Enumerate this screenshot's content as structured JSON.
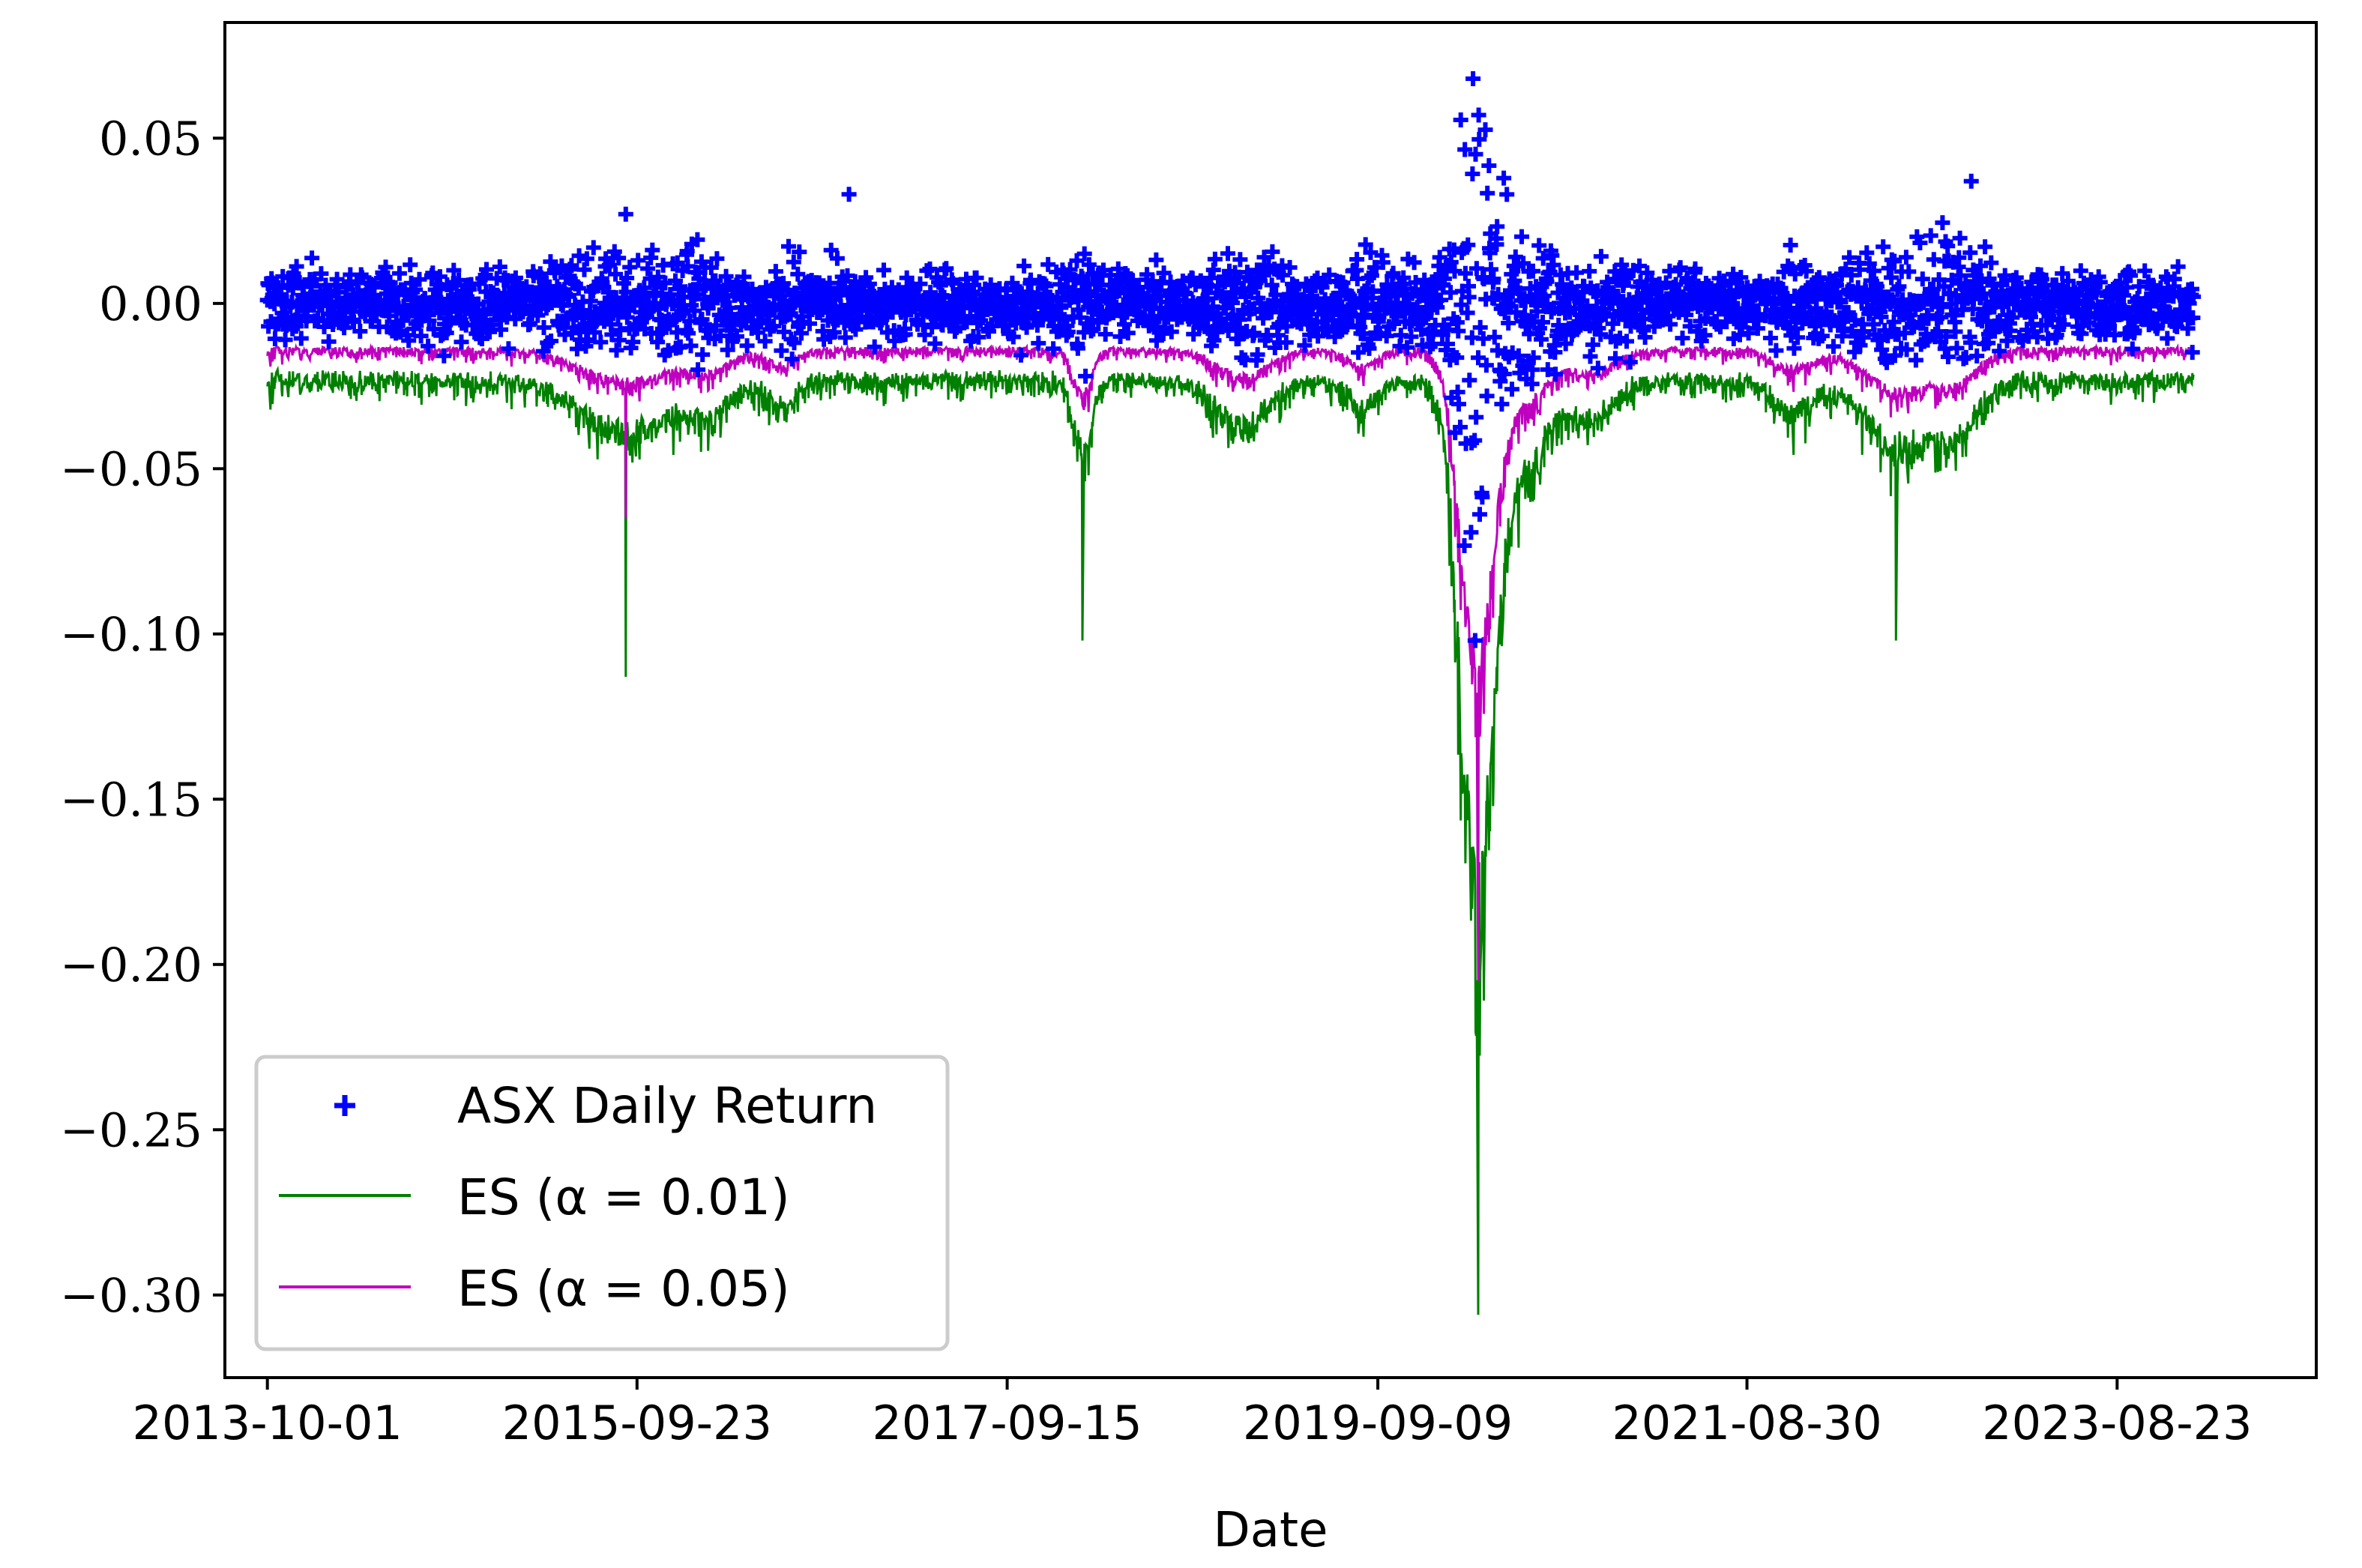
{
  "chart_data": {
    "type": "line",
    "title": "",
    "xlabel": "Date",
    "ylabel": "",
    "x_ticks": [
      "2013-10-01",
      "2015-09-23",
      "2017-09-15",
      "2019-09-09",
      "2021-08-30",
      "2023-08-23"
    ],
    "y_ticks": [
      "0.05",
      "0.00",
      "−0.05",
      "−0.10",
      "−0.15",
      "−0.20",
      "−0.25",
      "−0.30"
    ],
    "y_tick_values": [
      0.05,
      0.0,
      -0.05,
      -0.1,
      -0.15,
      -0.2,
      -0.25,
      -0.3
    ],
    "xlim": [
      "2013-07-10",
      "2024-09-15"
    ],
    "ylim": [
      -0.325,
      0.085
    ],
    "grid": false,
    "legend_position": "lower-left",
    "series": [
      {
        "name": "ASX Daily Return",
        "kind": "scatter",
        "marker": "+",
        "color": "#0000ff",
        "notable_points": [
          {
            "x": "2020-03-13",
            "y": 0.068
          },
          {
            "x": "2020-03-24",
            "y": 0.057
          },
          {
            "x": "2020-03-17",
            "y": -0.102
          },
          {
            "x": "2016-11-10",
            "y": 0.033
          },
          {
            "x": "2022-11-11",
            "y": 0.037
          },
          {
            "x": "2015-09-01",
            "y": 0.027
          }
        ]
      },
      {
        "name": "ES (α = 0.01)",
        "kind": "line",
        "color": "#008000",
        "notable_points": [
          {
            "x": "2020-03-23",
            "y": -0.306
          },
          {
            "x": "2015-09-01",
            "y": -0.113
          },
          {
            "x": "2018-02-09",
            "y": -0.102
          },
          {
            "x": "2022-06-17",
            "y": -0.102
          }
        ]
      },
      {
        "name": "ES (α = 0.05)",
        "kind": "line",
        "color": "#bf00bf",
        "notable_points": [
          {
            "x": "2020-03-23",
            "y": -0.205
          },
          {
            "x": "2015-09-01",
            "y": -0.065
          }
        ]
      }
    ]
  },
  "legend": {
    "entries": [
      {
        "label": "ASX Daily Return",
        "color": "#0000ff"
      },
      {
        "label": "ES (α = 0.01)",
        "color": "#008000"
      },
      {
        "label": "ES (α = 0.05)",
        "color": "#bf00bf"
      }
    ]
  }
}
